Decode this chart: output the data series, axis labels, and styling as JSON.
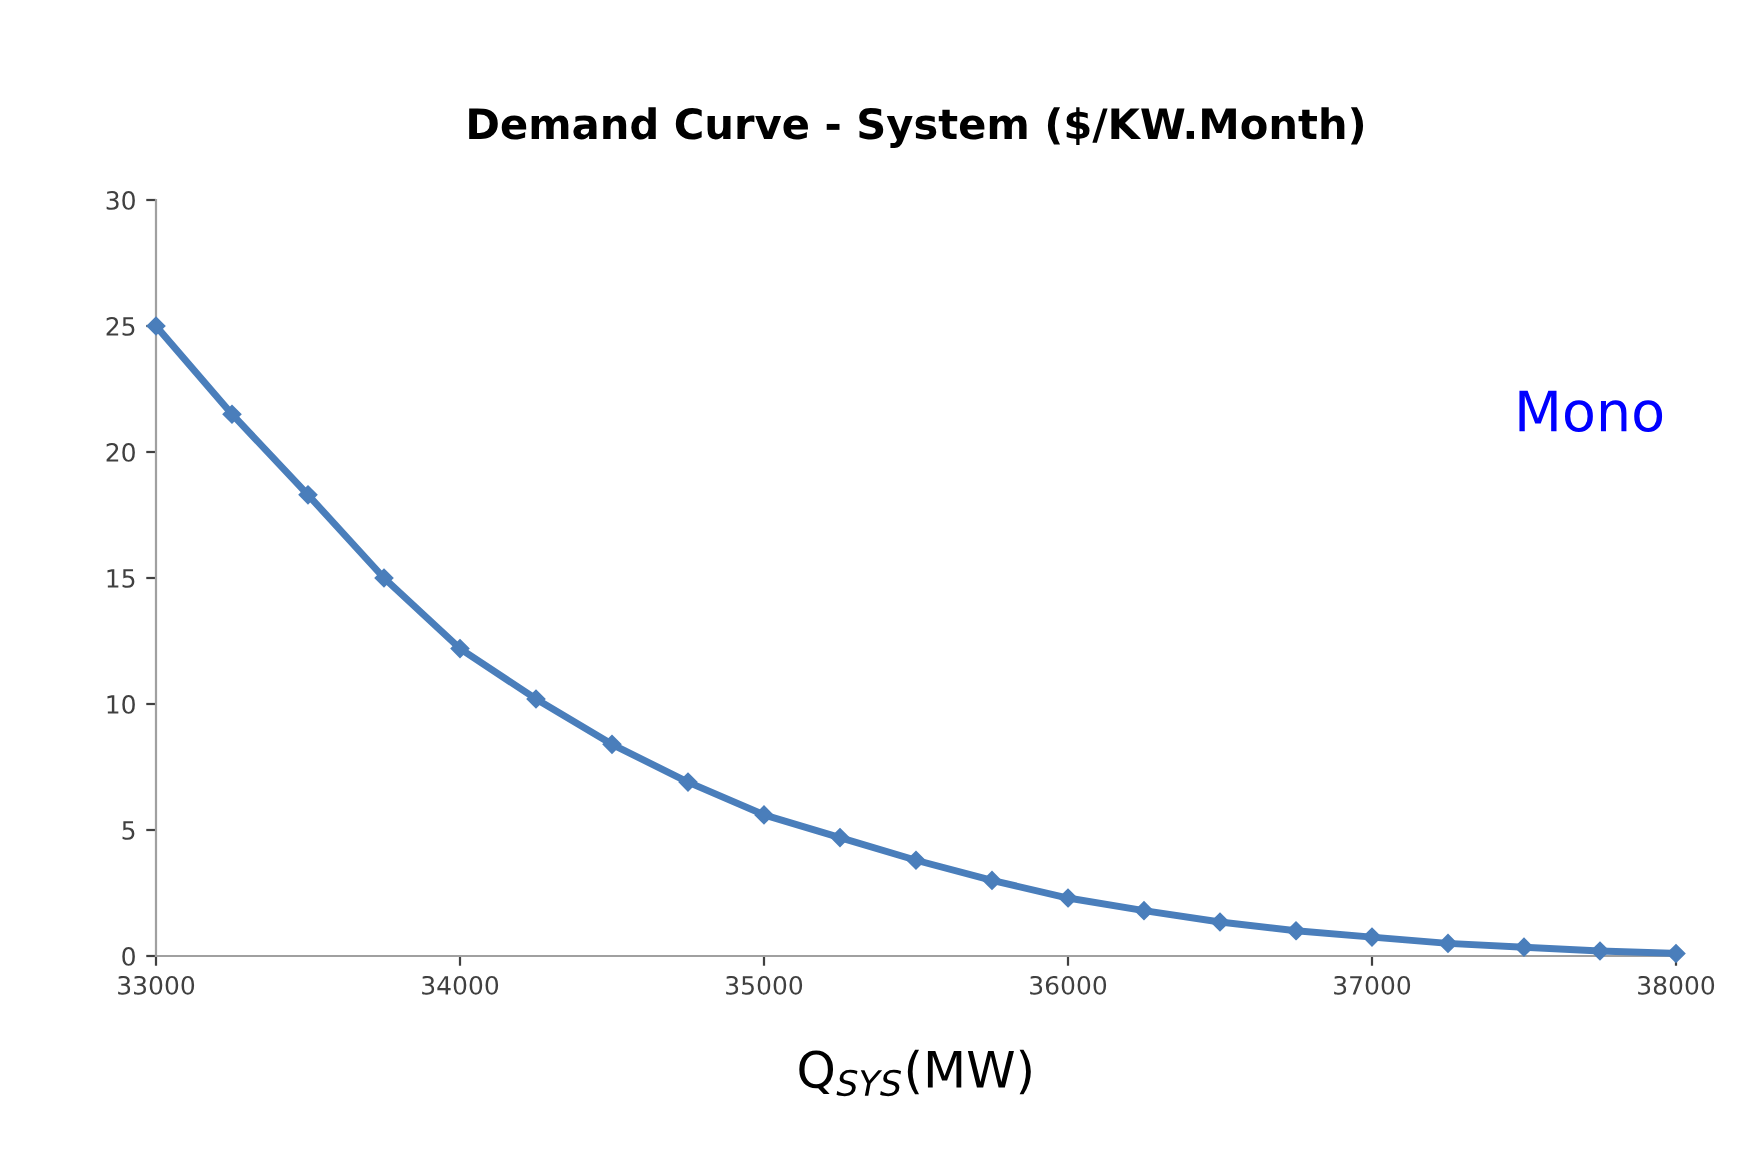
{
  "chart_data": {
    "type": "line",
    "title": "Demand Curve - System ($/KW.Month)",
    "xlabel": "Q$_{SYS}$(MW)",
    "annotations": [
      "Mono"
    ],
    "x": [
      33000,
      33250,
      33500,
      33750,
      34000,
      34250,
      34500,
      34750,
      35000,
      35250,
      35500,
      35750,
      36000,
      36250,
      36500,
      36750,
      37000,
      37250,
      37500,
      37750,
      38000
    ],
    "series": [
      {
        "color": "#4a7ebb",
        "values": [
          25,
          21.5,
          18.3,
          15.0,
          12.2,
          10.2,
          8.4,
          6.9,
          5.6,
          4.7,
          3.8,
          3.0,
          2.3,
          1.8,
          1.35,
          1.0,
          0.75,
          0.5,
          0.35,
          0.2,
          0.1
        ]
      }
    ],
    "xlim": [
      33000,
      38000
    ],
    "xticks": [
      33000,
      34000,
      35000,
      36000,
      37000,
      38000
    ],
    "ylim": [
      0,
      30
    ],
    "yticks": [
      0,
      5,
      10,
      15,
      20,
      25,
      30
    ],
    "marker": "diamond",
    "line_style": "solid",
    "grid": false,
    "legend": false
  }
}
